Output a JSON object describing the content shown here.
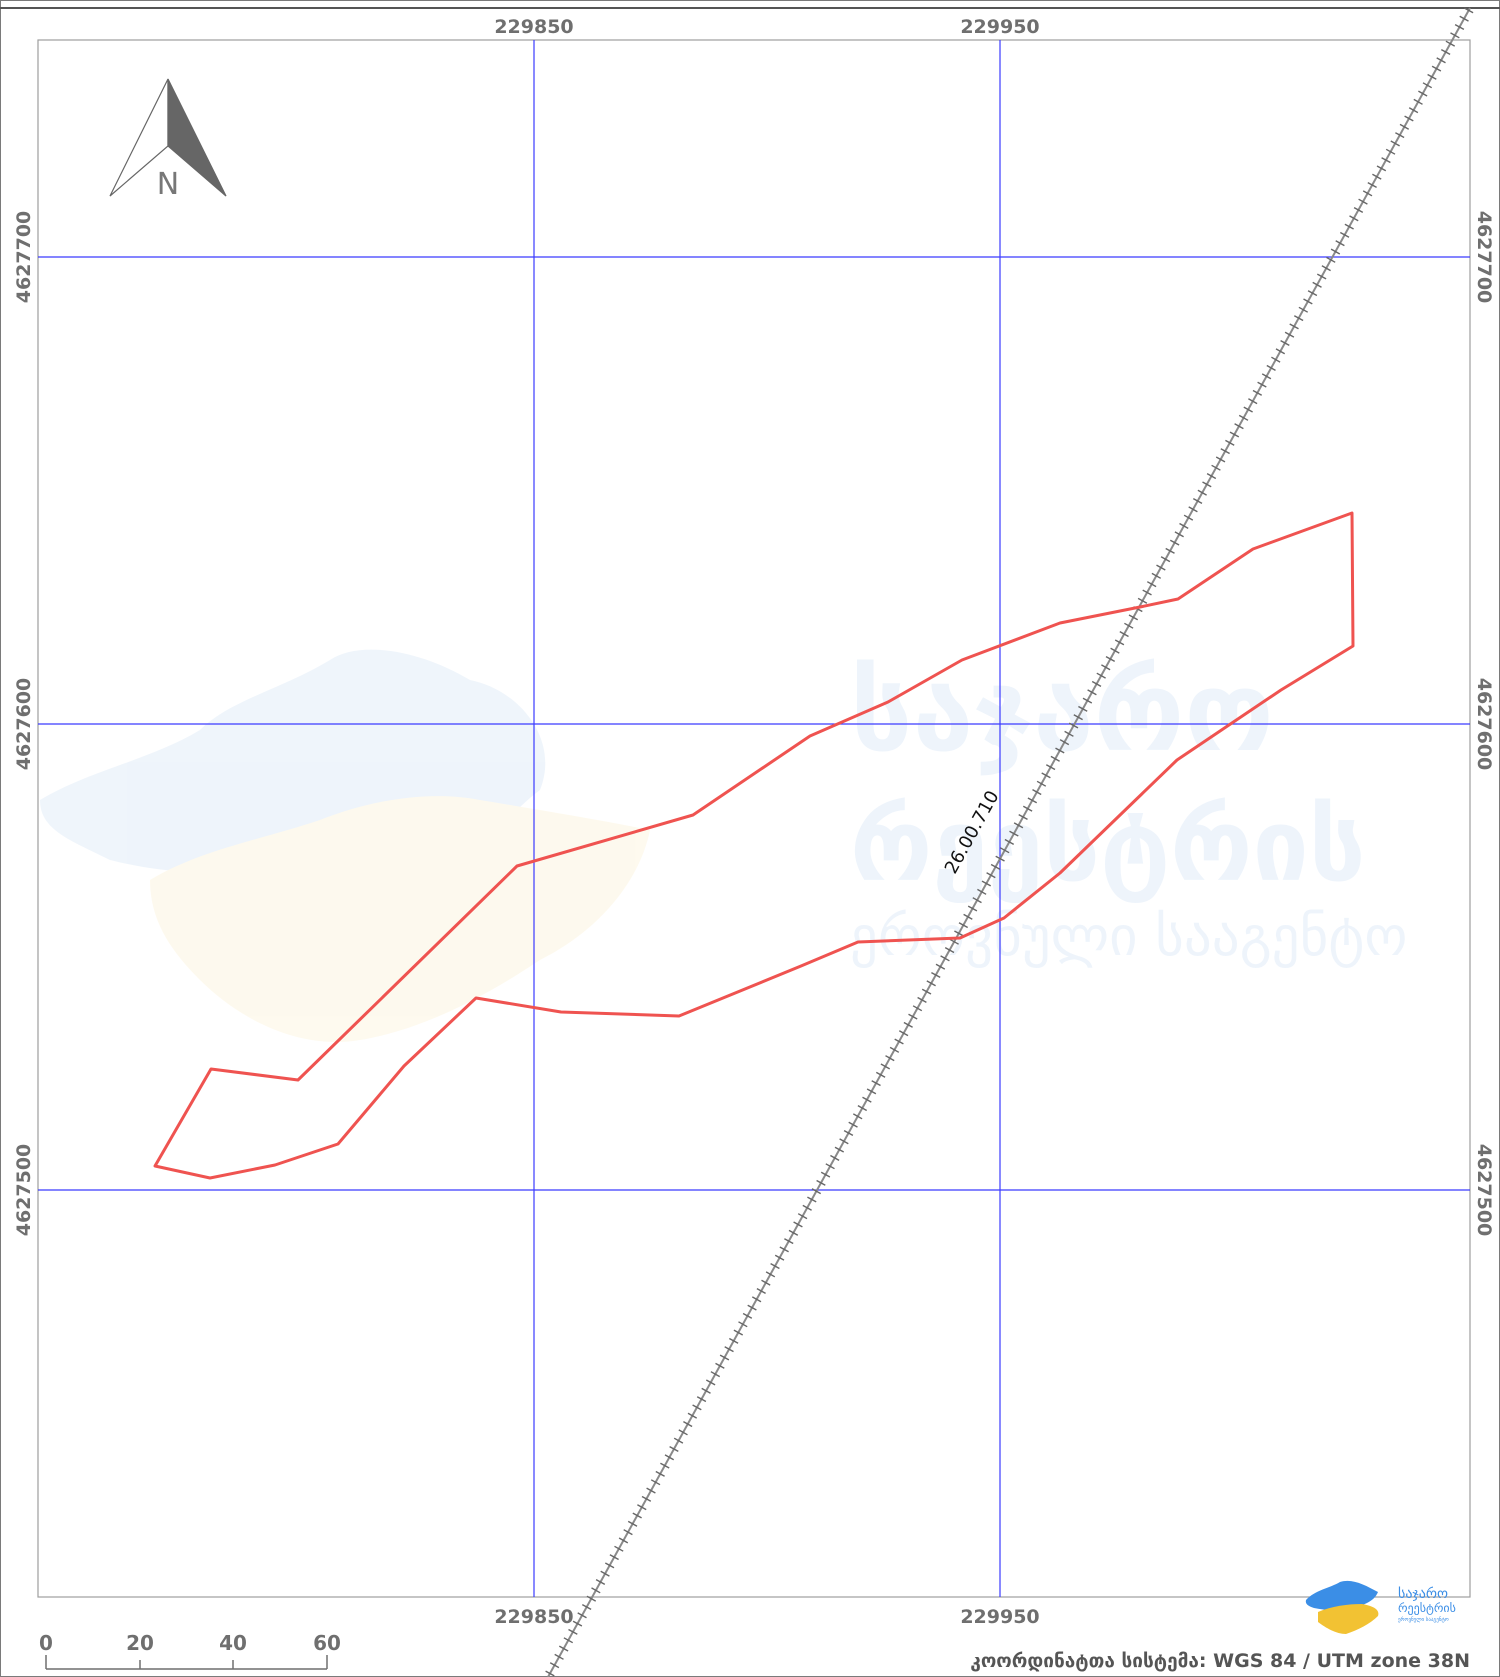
{
  "map": {
    "grid_labels": {
      "x_top": [
        "229850",
        "229950"
      ],
      "x_bottom": [
        "229850",
        "229950"
      ],
      "y_left": [
        "4627700",
        "4627600",
        "4627500"
      ],
      "y_right": [
        "4627700",
        "4627600",
        "4627500"
      ]
    },
    "north_arrow_label": "N",
    "railway_label": "26.00.710",
    "scale_bar": {
      "ticks": [
        "0",
        "20",
        "40",
        "60"
      ]
    },
    "crs_label": "კოორდინატთა სისტემა: WGS 84 / UTM zone 38N",
    "logo_text": {
      "line1": "საჯარო",
      "line2": "რეესტრის",
      "line3": "ეროვნული სააგენტო"
    },
    "watermark": {
      "line1": "საჯარო",
      "line2": "რეესტრის",
      "line3": "ეროვნული სააგენტო"
    },
    "colors": {
      "grid": "#3b3bff",
      "parcel": "#ef5350",
      "railway": "#8a8a8a",
      "frame": "#9e9e9e"
    }
  }
}
